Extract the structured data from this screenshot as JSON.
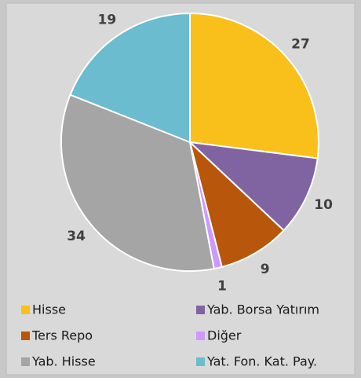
{
  "chart_data": {
    "type": "pie",
    "categories": [
      "Hisse",
      "Yab. Borsa Yatırım",
      "Ters Repo",
      "Diğer",
      "Yab. Hisse",
      "Yat. Fon. Kat. Pay."
    ],
    "values": [
      27,
      10,
      9,
      1,
      34,
      19
    ],
    "colors": [
      "#f9c01c",
      "#8064a2",
      "#b8570b",
      "#cc99ff",
      "#a5a5a5",
      "#6bbccf"
    ],
    "legend": "bottom"
  }
}
